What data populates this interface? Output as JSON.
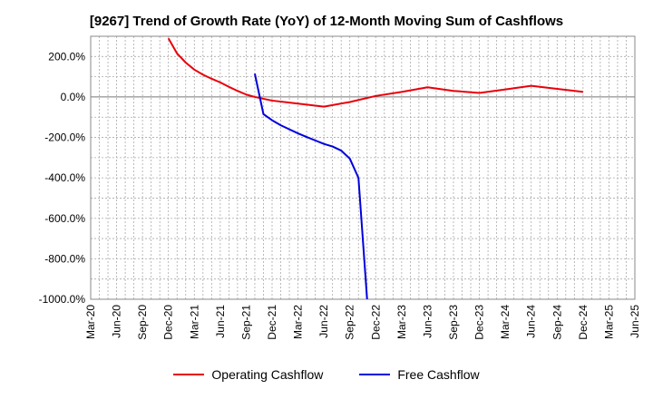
{
  "chart_data": {
    "type": "line",
    "title": "[9267]  Trend of Growth Rate (YoY) of 12-Month Moving Sum of Cashflows",
    "xlabel": "",
    "ylabel": "",
    "x_categories": [
      "Mar-20",
      "Jun-20",
      "Sep-20",
      "Dec-20",
      "Mar-21",
      "Jun-21",
      "Sep-21",
      "Dec-21",
      "Mar-22",
      "Jun-22",
      "Sep-22",
      "Dec-22",
      "Mar-23",
      "Jun-23",
      "Sep-23",
      "Dec-23",
      "Mar-24",
      "Jun-24",
      "Sep-24",
      "Dec-24",
      "Mar-25",
      "Jun-25"
    ],
    "y_ticks": [
      {
        "value": 200,
        "label": "200.0%"
      },
      {
        "value": 0,
        "label": "0.0%"
      },
      {
        "value": -200,
        "label": "-200.0%"
      },
      {
        "value": -400,
        "label": "-400.0%"
      },
      {
        "value": -600,
        "label": "-600.0%"
      },
      {
        "value": -800,
        "label": "-800.0%"
      },
      {
        "value": -1000,
        "label": "-1000.0%"
      }
    ],
    "ylim": [
      -1000,
      300
    ],
    "grid": true,
    "legend_position": "bottom",
    "series": [
      {
        "name": "Operating Cashflow",
        "color": "#e8000b",
        "points": [
          {
            "x": "Dec-20",
            "y": 290
          },
          {
            "x": "Jan-21",
            "y": 215
          },
          {
            "x": "Feb-21",
            "y": 170
          },
          {
            "x": "Mar-21",
            "y": 135
          },
          {
            "x": "Apr-21",
            "y": 110
          },
          {
            "x": "May-21",
            "y": 90
          },
          {
            "x": "Jun-21",
            "y": 72
          },
          {
            "x": "Jul-21",
            "y": 50
          },
          {
            "x": "Aug-21",
            "y": 30
          },
          {
            "x": "Sep-21",
            "y": 12
          },
          {
            "x": "Oct-21",
            "y": 0
          },
          {
            "x": "Dec-21",
            "y": -18
          },
          {
            "x": "Mar-22",
            "y": -33
          },
          {
            "x": "Jun-22",
            "y": -48
          },
          {
            "x": "Sep-22",
            "y": -25
          },
          {
            "x": "Dec-22",
            "y": 5
          },
          {
            "x": "Mar-23",
            "y": 25
          },
          {
            "x": "Jun-23",
            "y": 48
          },
          {
            "x": "Sep-23",
            "y": 30
          },
          {
            "x": "Dec-23",
            "y": 20
          },
          {
            "x": "Mar-24",
            "y": 37
          },
          {
            "x": "Jun-24",
            "y": 55
          },
          {
            "x": "Sep-24",
            "y": 40
          },
          {
            "x": "Dec-24",
            "y": 25
          }
        ]
      },
      {
        "name": "Free Cashflow",
        "color": "#0000dd",
        "points": [
          {
            "x": "Oct-21",
            "y": 115
          },
          {
            "x": "Nov-21",
            "y": -85
          },
          {
            "x": "Dec-21",
            "y": -115
          },
          {
            "x": "Jan-22",
            "y": -140
          },
          {
            "x": "Feb-22",
            "y": -160
          },
          {
            "x": "Mar-22",
            "y": -180
          },
          {
            "x": "Apr-22",
            "y": -198
          },
          {
            "x": "May-22",
            "y": -215
          },
          {
            "x": "Jun-22",
            "y": -232
          },
          {
            "x": "Jul-22",
            "y": -245
          },
          {
            "x": "Aug-22",
            "y": -265
          },
          {
            "x": "Sep-22",
            "y": -305
          },
          {
            "x": "Oct-22",
            "y": -400
          },
          {
            "x": "Nov-22",
            "y": -1000
          }
        ]
      }
    ]
  }
}
